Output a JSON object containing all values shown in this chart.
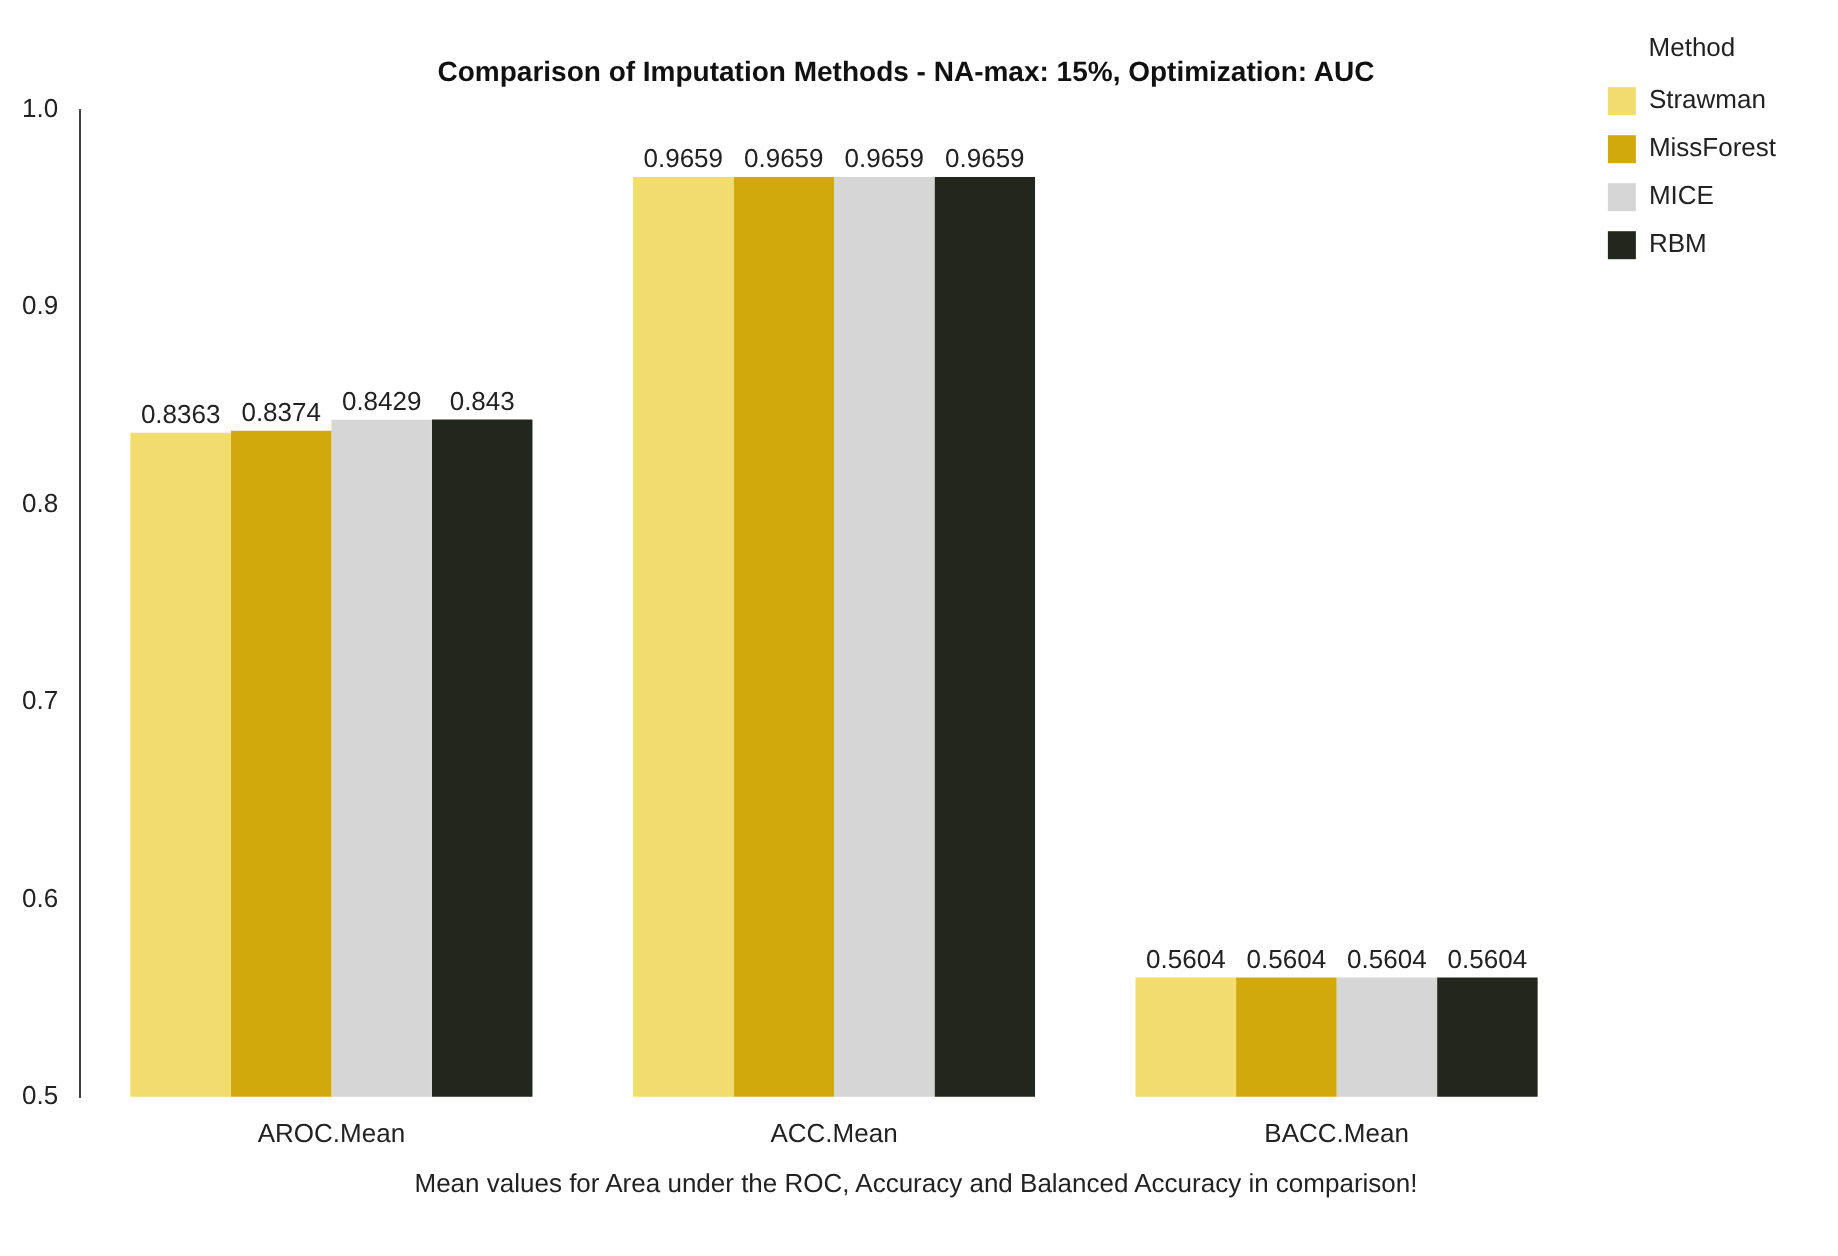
{
  "chart_data": {
    "type": "bar",
    "title": "Comparison of Imputation Methods - NA-max: 15%, Optimization: AUC",
    "annotations": [
      "Mean values for Area under the ROC, Accuracy and Balanced Accuracy in comparison!"
    ],
    "legend_title": "Method",
    "categories": [
      "AROC.Mean",
      "ACC.Mean",
      "BACC.Mean"
    ],
    "series": [
      {
        "name": "Strawman",
        "color": "#f2dc6e",
        "values": [
          0.8363,
          0.9659,
          0.5604
        ]
      },
      {
        "name": "MissForest",
        "color": "#d1a90c",
        "values": [
          0.8374,
          0.9659,
          0.5604
        ]
      },
      {
        "name": "MICE",
        "color": "#d6d6d6",
        "values": [
          0.8429,
          0.9659,
          0.5604
        ]
      },
      {
        "name": "RBM",
        "color": "#23261d",
        "values": [
          0.843,
          0.9659,
          0.5604
        ]
      }
    ],
    "ylim": [
      0.5,
      1.0
    ],
    "yticks": [
      0.5,
      0.6,
      0.7,
      0.8,
      0.9,
      {
        "value": 1,
        "label": "1.0"
      }
    ],
    "grid": false,
    "legend": "top right",
    "data_labels": true
  }
}
